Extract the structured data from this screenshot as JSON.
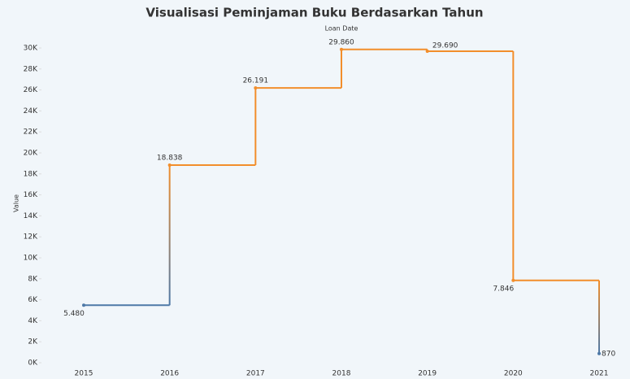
{
  "chart_data": {
    "type": "step",
    "title": "Visualisasi Peminjaman Buku Berdasarkan Tahun",
    "x_label": "Loan Date",
    "y_label": "Value",
    "categories": [
      "2015",
      "2016",
      "2017",
      "2018",
      "2019",
      "2020",
      "2021"
    ],
    "values": [
      5480,
      18838,
      26191,
      29860,
      29690,
      7846,
      870
    ],
    "value_labels": [
      "5.480",
      "18.838",
      "26.191",
      "29.860",
      "29.690",
      "7.846",
      "870"
    ],
    "colors": [
      "#4e79a7",
      "#f28e2b",
      "#f28e2b",
      "#f28e2b",
      "#f28e2b",
      "#f28e2b",
      "#4e79a7"
    ],
    "ylim": [
      0,
      30000
    ],
    "yticks": [
      {
        "value": 0,
        "label": "0K"
      },
      {
        "value": 2000,
        "label": "2K"
      },
      {
        "value": 4000,
        "label": "4K"
      },
      {
        "value": 6000,
        "label": "6K"
      },
      {
        "value": 8000,
        "label": "8K"
      },
      {
        "value": 10000,
        "label": "10K"
      },
      {
        "value": 12000,
        "label": "12K"
      },
      {
        "value": 14000,
        "label": "14K"
      },
      {
        "value": 16000,
        "label": "16K"
      },
      {
        "value": 18000,
        "label": "18K"
      },
      {
        "value": 20000,
        "label": "20K"
      },
      {
        "value": 22000,
        "label": "22K"
      },
      {
        "value": 24000,
        "label": "24K"
      },
      {
        "value": 26000,
        "label": "26K"
      },
      {
        "value": 28000,
        "label": "28K"
      },
      {
        "value": 30000,
        "label": "30K"
      }
    ]
  }
}
